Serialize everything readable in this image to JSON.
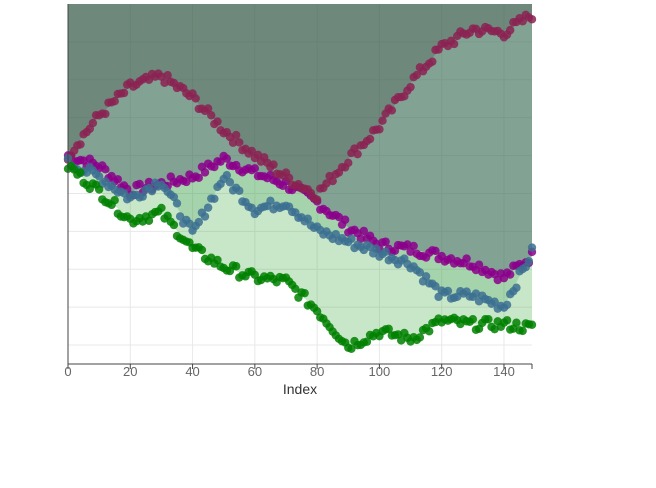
{
  "chart_data": {
    "type": "scatter",
    "xlabel": "Index",
    "ylabel": "",
    "xlim": [
      0,
      149
    ],
    "ylim": [
      0,
      1
    ],
    "x_ticks": [
      0,
      20,
      40,
      60,
      80,
      100,
      120,
      140
    ],
    "grid": true,
    "legend": "none",
    "series": [
      {
        "color": "#8b008b",
        "fill_color": "#4b0082",
        "fill_opacity": 0.75,
        "x": [
          0,
          10,
          20,
          30,
          40,
          50,
          60,
          70,
          80,
          90,
          100,
          110,
          120,
          130,
          140,
          149
        ],
        "values": [
          0.58,
          0.55,
          0.48,
          0.5,
          0.52,
          0.57,
          0.53,
          0.5,
          0.45,
          0.38,
          0.33,
          0.32,
          0.3,
          0.28,
          0.24,
          0.3
        ]
      },
      {
        "color": "#8b2252",
        "fill_color": "#5b2a5b",
        "fill_opacity": 0.8,
        "x": [
          0,
          10,
          20,
          30,
          40,
          50,
          60,
          70,
          80,
          90,
          100,
          110,
          120,
          130,
          140,
          149
        ],
        "values": [
          0.58,
          0.69,
          0.77,
          0.8,
          0.74,
          0.65,
          0.58,
          0.52,
          0.47,
          0.57,
          0.66,
          0.78,
          0.88,
          0.93,
          0.92,
          0.97
        ]
      },
      {
        "color": "#3c7090",
        "fill_color": "#2e8b57",
        "fill_opacity": 0.5,
        "x": [
          0,
          10,
          20,
          30,
          40,
          50,
          60,
          70,
          80,
          90,
          100,
          110,
          120,
          130,
          140,
          149
        ],
        "values": [
          0.56,
          0.52,
          0.46,
          0.51,
          0.36,
          0.52,
          0.43,
          0.45,
          0.37,
          0.34,
          0.31,
          0.28,
          0.19,
          0.19,
          0.16,
          0.31
        ]
      },
      {
        "color": "#008000",
        "fill_color": "#32a832",
        "fill_opacity": 0.6,
        "x": [
          0,
          10,
          20,
          30,
          40,
          50,
          60,
          70,
          80,
          90,
          100,
          110,
          120,
          130,
          140,
          149
        ],
        "values": [
          0.55,
          0.48,
          0.4,
          0.42,
          0.32,
          0.27,
          0.24,
          0.23,
          0.15,
          0.05,
          0.09,
          0.07,
          0.12,
          0.11,
          0.11,
          0.1
        ]
      }
    ]
  }
}
